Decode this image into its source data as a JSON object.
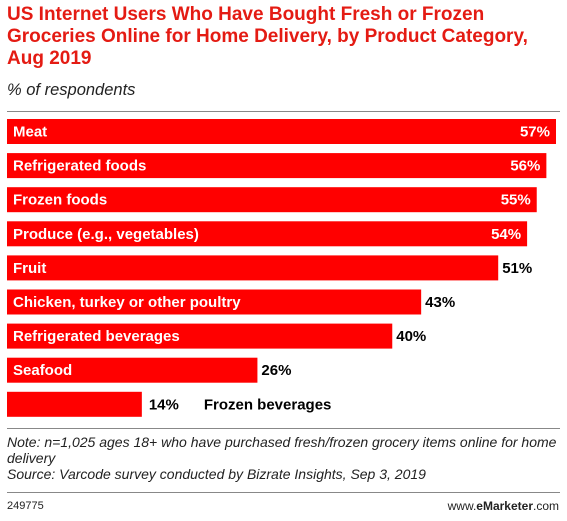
{
  "header": {
    "title": "US Internet Users Who Have Bought Fresh or Frozen Groceries Online for Home Delivery, by Product Category, Aug 2019",
    "subtitle": "% of respondents"
  },
  "chart_data": {
    "type": "bar",
    "orientation": "horizontal",
    "categories": [
      "Meat",
      "Refrigerated foods",
      "Frozen foods",
      "Produce (e.g., vegetables)",
      "Fruit",
      "Chicken, turkey or other poultry",
      "Refrigerated beverages",
      "Seafood",
      "Frozen beverages"
    ],
    "values": [
      57,
      56,
      55,
      54,
      51,
      43,
      40,
      26,
      14
    ],
    "value_labels": [
      "57%",
      "56%",
      "55%",
      "54%",
      "51%",
      "43%",
      "40%",
      "26%",
      "14%"
    ],
    "xlim": [
      0,
      57
    ],
    "bar_color": "#ff0000",
    "grid": false,
    "legend": "none"
  },
  "footer": {
    "note": "Note: n=1,025 ages 18+ who have purchased fresh/frozen grocery items online for home delivery",
    "source": "Source: Varcode survey conducted by Bizrate Insights, Sep 3, 2019",
    "id": "249775",
    "brand_prefix": "www.",
    "brand_name": "eMarketer",
    "brand_suffix": ".com"
  }
}
